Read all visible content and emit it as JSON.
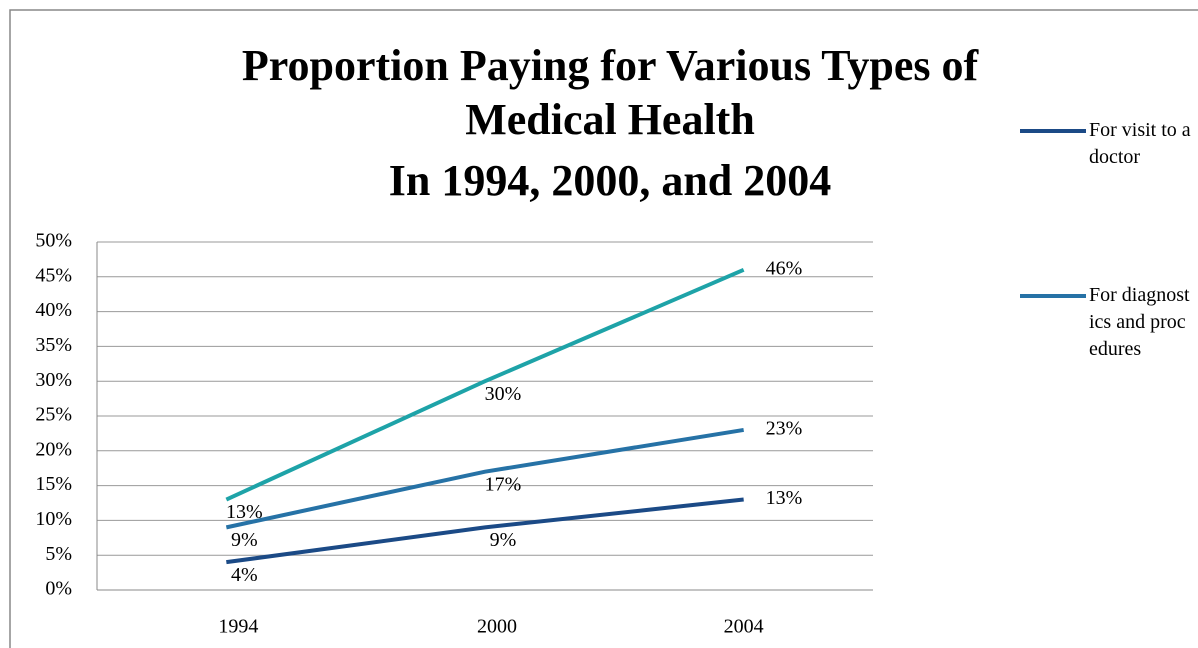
{
  "chart_data": {
    "type": "line",
    "title": "Proportion Paying for Various Types of Medical Health In 1994, 2000, and 2004",
    "categories": [
      "1994",
      "2000",
      "2004"
    ],
    "series": [
      {
        "name": "For visit to a doctor",
        "color": "#1b4a86",
        "values": [
          4,
          9,
          13
        ],
        "value_labels": [
          "4%",
          "9%",
          "13%"
        ]
      },
      {
        "name": "For diagnostics and procedures",
        "color": "#2672a6",
        "values": [
          9,
          17,
          23
        ],
        "value_labels": [
          "9%",
          "17%",
          "23%"
        ]
      },
      {
        "color": "#1ea3a8",
        "values": [
          13,
          30,
          46
        ],
        "value_labels": [
          "13%",
          "30%",
          "46%"
        ]
      }
    ],
    "ylim": [
      0,
      50
    ],
    "yticks": [
      {
        "value": 0,
        "label": "0%"
      },
      {
        "value": 5,
        "label": "5%"
      },
      {
        "value": 10,
        "label": "10%"
      },
      {
        "value": 15,
        "label": "15%"
      },
      {
        "value": 20,
        "label": "20%"
      },
      {
        "value": 25,
        "label": "25%"
      },
      {
        "value": 30,
        "label": "30%"
      },
      {
        "value": 35,
        "label": "35%"
      },
      {
        "value": 40,
        "label": "40%"
      },
      {
        "value": 45,
        "label": "45%"
      },
      {
        "value": 50,
        "label": "50%"
      }
    ],
    "grid": true,
    "legend": "right"
  }
}
